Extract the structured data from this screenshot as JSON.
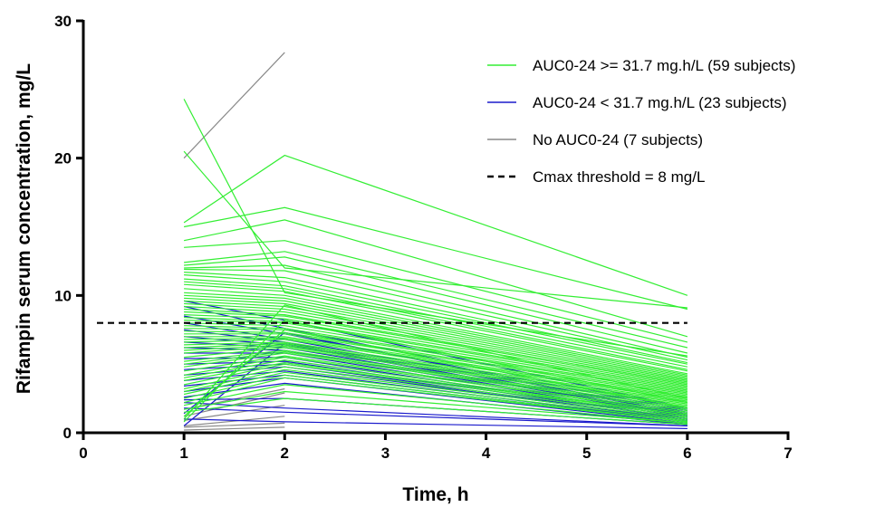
{
  "chart_data": {
    "type": "line",
    "title": "",
    "xlabel": "Time, h",
    "ylabel": "Rifampin serum concentration, mg/L",
    "xlim": [
      0,
      7
    ],
    "ylim": [
      0,
      30
    ],
    "xticks": [
      "0",
      "1",
      "2",
      "3",
      "4",
      "5",
      "6",
      "7"
    ],
    "yticks": [
      "0",
      "10",
      "20",
      "30"
    ],
    "grid": false,
    "legend_position": "top-right",
    "x": [
      1,
      2,
      6
    ],
    "series": [
      {
        "name": "AUC0-24 >= 31.7 mg.h/L (59 subjects)",
        "color": "#33ee33",
        "profiles": [
          [
            24.3,
            10.2,
            5.6
          ],
          [
            20.5,
            12.0,
            9.1
          ],
          [
            15.3,
            20.2,
            10.0
          ],
          [
            15.0,
            16.4,
            9.0
          ],
          [
            14.0,
            15.5,
            7.0
          ],
          [
            13.5,
            14.0,
            6.6
          ],
          [
            12.4,
            13.2,
            6.2
          ],
          [
            12.2,
            12.8,
            5.8
          ],
          [
            12.0,
            12.2,
            5.5
          ],
          [
            11.9,
            11.8,
            5.3
          ],
          [
            11.7,
            11.3,
            5.1
          ],
          [
            11.5,
            11.0,
            5.0
          ],
          [
            11.2,
            10.7,
            4.8
          ],
          [
            11.0,
            10.5,
            4.6
          ],
          [
            10.8,
            10.3,
            4.5
          ],
          [
            10.5,
            10.0,
            4.3
          ],
          [
            10.2,
            9.8,
            4.2
          ],
          [
            10.0,
            9.6,
            4.1
          ],
          [
            9.8,
            9.4,
            4.0
          ],
          [
            9.6,
            9.2,
            3.9
          ],
          [
            9.4,
            9.0,
            3.8
          ],
          [
            9.2,
            8.8,
            3.7
          ],
          [
            9.0,
            8.6,
            3.6
          ],
          [
            8.8,
            8.5,
            3.5
          ],
          [
            8.6,
            8.3,
            3.4
          ],
          [
            8.4,
            8.1,
            3.3
          ],
          [
            8.2,
            8.0,
            3.2
          ],
          [
            8.0,
            7.8,
            3.1
          ],
          [
            7.8,
            7.6,
            3.0
          ],
          [
            7.6,
            7.5,
            2.9
          ],
          [
            7.4,
            7.3,
            2.8
          ],
          [
            7.2,
            7.2,
            2.7
          ],
          [
            7.0,
            7.0,
            2.6
          ],
          [
            6.8,
            6.9,
            2.5
          ],
          [
            6.6,
            6.8,
            2.4
          ],
          [
            6.4,
            6.6,
            2.3
          ],
          [
            6.2,
            6.5,
            2.2
          ],
          [
            6.0,
            6.4,
            2.1
          ],
          [
            5.8,
            6.3,
            2.0
          ],
          [
            5.5,
            6.2,
            1.9
          ],
          [
            5.2,
            6.0,
            1.8
          ],
          [
            5.0,
            5.9,
            1.7
          ],
          [
            4.8,
            5.8,
            1.6
          ],
          [
            4.5,
            5.6,
            1.5
          ],
          [
            4.2,
            5.5,
            1.4
          ],
          [
            4.0,
            5.3,
            1.3
          ],
          [
            3.8,
            5.1,
            1.3
          ],
          [
            3.5,
            5.0,
            1.2
          ],
          [
            3.2,
            4.8,
            1.1
          ],
          [
            3.0,
            4.6,
            1.0
          ],
          [
            2.8,
            4.4,
            0.9
          ],
          [
            2.5,
            4.2,
            0.8
          ],
          [
            2.2,
            4.0,
            0.8
          ],
          [
            2.0,
            3.5,
            0.7
          ],
          [
            1.7,
            3.0,
            0.7
          ],
          [
            1.5,
            2.5,
            0.6
          ],
          [
            1.2,
            7.5,
            1.8
          ],
          [
            1.0,
            9.3,
            2.5
          ],
          [
            0.8,
            8.2,
            2.2
          ]
        ]
      },
      {
        "name": "AUC0-24 < 31.7 mg.h/L (23 subjects)",
        "color": "#1a1acc",
        "profiles": [
          [
            9.6,
            8.2,
            1.8
          ],
          [
            9.2,
            7.6,
            1.7
          ],
          [
            8.5,
            7.2,
            1.6
          ],
          [
            8.0,
            6.8,
            1.5
          ],
          [
            7.5,
            6.6,
            1.4
          ],
          [
            7.0,
            6.4,
            1.3
          ],
          [
            6.6,
            6.2,
            1.3
          ],
          [
            6.2,
            6.0,
            1.2
          ],
          [
            5.8,
            5.8,
            1.1
          ],
          [
            5.4,
            5.5,
            1.0
          ],
          [
            5.0,
            5.2,
            1.0
          ],
          [
            4.6,
            5.0,
            0.9
          ],
          [
            4.2,
            4.8,
            0.9
          ],
          [
            3.8,
            4.5,
            0.8
          ],
          [
            3.4,
            4.2,
            0.8
          ],
          [
            3.0,
            4.0,
            0.7
          ],
          [
            2.6,
            3.6,
            0.6
          ],
          [
            2.4,
            2.5,
            0.6
          ],
          [
            2.2,
            1.8,
            0.5
          ],
          [
            1.8,
            1.5,
            0.5
          ],
          [
            1.4,
            7.3,
            1.3
          ],
          [
            1.0,
            0.8,
            0.3
          ],
          [
            0.5,
            6.5,
            1.2
          ]
        ]
      },
      {
        "name": "No AUC0-24 (7 subjects)",
        "color": "#888888",
        "profiles": [
          [
            20.0,
            27.7,
            null
          ],
          [
            1.7,
            3.2,
            null
          ],
          [
            1.2,
            2.9,
            null
          ],
          [
            0.9,
            2.0,
            null
          ],
          [
            0.5,
            1.2,
            null
          ],
          [
            0.4,
            0.7,
            null
          ],
          [
            0.2,
            0.4,
            null
          ]
        ]
      }
    ],
    "reference_lines": [
      {
        "name": "Cmax threshold = 8 mg/L",
        "y": 8,
        "style": "dashed",
        "color": "#000000"
      }
    ]
  }
}
